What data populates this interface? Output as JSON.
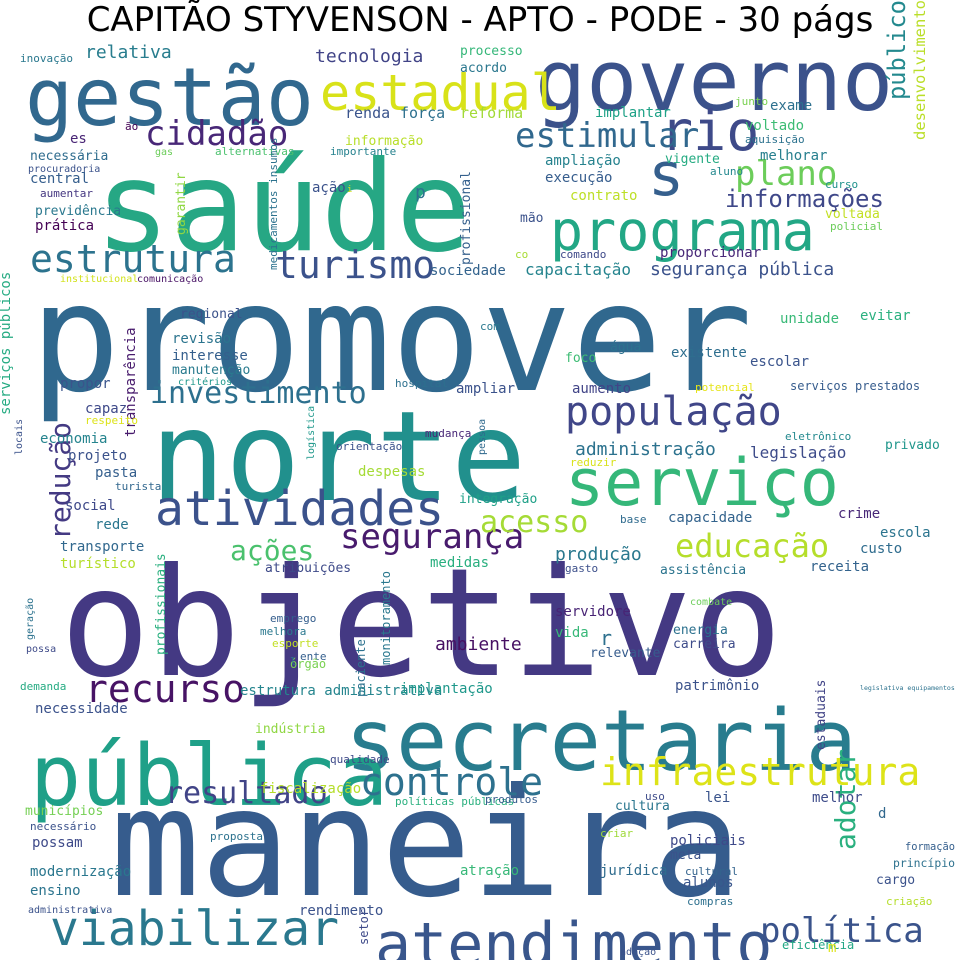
{
  "title": "CAPITÃO STYVENSON - APTO - PODE - 30 págs",
  "words": [
    {
      "text": "promover",
      "color": "#30688e"
    },
    {
      "text": "saúde",
      "color": "#26a784"
    },
    {
      "text": "objetivo",
      "color": "#443983"
    },
    {
      "text": "maneira",
      "color": "#365c8d"
    },
    {
      "text": "norte",
      "color": "#21908d"
    },
    {
      "text": "governo",
      "color": "#3b528b"
    },
    {
      "text": "gestão",
      "color": "#31688e"
    },
    {
      "text": "público",
      "color": "#23898e"
    },
    {
      "text": "secretaria",
      "color": "#287c8e"
    },
    {
      "text": "pública",
      "color": "#1fa088"
    },
    {
      "text": "serviço",
      "color": "#35b779"
    },
    {
      "text": "atendimento",
      "color": "#39568c"
    },
    {
      "text": "programa",
      "color": "#22a785"
    },
    {
      "text": "viabilizar",
      "color": "#2a788e"
    },
    {
      "text": "rio",
      "color": "#3e4a89"
    },
    {
      "text": "atividades",
      "color": "#3b528b"
    },
    {
      "text": "população",
      "color": "#404688"
    },
    {
      "text": "estadual",
      "color": "#d8e219"
    },
    {
      "text": "s",
      "color": "#355f8d"
    },
    {
      "text": "infraestrutura",
      "color": "#dde318"
    },
    {
      "text": "controle",
      "color": "#2d718e"
    },
    {
      "text": "estrutura",
      "color": "#2c738e"
    },
    {
      "text": "turismo",
      "color": "#3b528b"
    },
    {
      "text": "cidadão",
      "color": "#482777"
    },
    {
      "text": "estimular",
      "color": "#31688e"
    },
    {
      "text": "plano",
      "color": "#6ccd5a"
    },
    {
      "text": "política",
      "color": "#3a538b"
    },
    {
      "text": "recurso",
      "color": "#471365"
    },
    {
      "text": "resultado",
      "color": "#414487"
    },
    {
      "text": "investimento",
      "color": "#2d708e"
    },
    {
      "text": "desenvolvimento",
      "color": "#bade28"
    },
    {
      "text": "educação",
      "color": "#b5de2b"
    },
    {
      "text": "segurança",
      "color": "#481b6d"
    },
    {
      "text": "acesso",
      "color": "#a5db36"
    },
    {
      "text": "ações",
      "color": "#4ac16d"
    },
    {
      "text": "adotar",
      "color": "#2ab07f"
    },
    {
      "text": "redução",
      "color": "#443a83"
    },
    {
      "text": "informações",
      "color": "#3f4889"
    },
    {
      "text": "segurança pública",
      "color": "#3b528b"
    },
    {
      "text": "capacitação",
      "color": "#25848e"
    },
    {
      "text": "sociedade",
      "color": "#33638d"
    },
    {
      "text": "administração",
      "color": "#2c728e"
    },
    {
      "text": "legislação",
      "color": "#3e4c8a"
    },
    {
      "text": "ambiente",
      "color": "#471063"
    },
    {
      "text": "produção",
      "color": "#2a788e"
    },
    {
      "text": "ampliação",
      "color": "#26828e"
    },
    {
      "text": "execução",
      "color": "#365d8d"
    },
    {
      "text": "tecnologia",
      "color": "#414487"
    },
    {
      "text": "relativa",
      "color": "#287d8e"
    },
    {
      "text": "processo",
      "color": "#35b779"
    },
    {
      "text": "acordo",
      "color": "#2a778e"
    },
    {
      "text": "renda",
      "color": "#3a548c"
    },
    {
      "text": "força",
      "color": "#2d708e"
    },
    {
      "text": "reforma",
      "color": "#a2da37"
    },
    {
      "text": "informação",
      "color": "#b8de29"
    },
    {
      "text": "implantar",
      "color": "#1fa287"
    },
    {
      "text": "voltado",
      "color": "#3dbc74"
    },
    {
      "text": "exame",
      "color": "#2d708e"
    },
    {
      "text": "junto",
      "color": "#7ad151"
    },
    {
      "text": "aquisição",
      "color": "#2c728e"
    },
    {
      "text": "melhorar",
      "color": "#277f8e"
    },
    {
      "text": "aluno",
      "color": "#23888e"
    },
    {
      "text": "vigente",
      "color": "#25ab82"
    },
    {
      "text": "curso",
      "color": "#20928c"
    },
    {
      "text": "policial",
      "color": "#6ccd5a"
    },
    {
      "text": "voltada",
      "color": "#c2df23"
    },
    {
      "text": "inovação",
      "color": "#2a788e"
    },
    {
      "text": "es",
      "color": "#482475"
    },
    {
      "text": "ão",
      "color": "#440154"
    },
    {
      "text": "necessária",
      "color": "#2f6c8e"
    },
    {
      "text": "procuradoria",
      "color": "#3b528b"
    },
    {
      "text": "gas",
      "color": "#6ccd5a"
    },
    {
      "text": "alternativas",
      "color": "#4ac16d"
    },
    {
      "text": "importante",
      "color": "#26828e"
    },
    {
      "text": "central",
      "color": "#355e8d"
    },
    {
      "text": "aumentar",
      "color": "#453781"
    },
    {
      "text": "previdência",
      "color": "#2a788e"
    },
    {
      "text": "prática",
      "color": "#440154"
    },
    {
      "text": "institucional",
      "color": "#d2e21b"
    },
    {
      "text": "comunicação",
      "color": "#471164"
    },
    {
      "text": "garantir",
      "color": "#90d743"
    },
    {
      "text": "medicamentos insumos",
      "color": "#2c728e"
    },
    {
      "text": "profissional",
      "color": "#35608d"
    },
    {
      "text": "contrato",
      "color": "#bddf26"
    },
    {
      "text": "mão",
      "color": "#3b528b"
    },
    {
      "text": "comando",
      "color": "#3e4989"
    },
    {
      "text": "co",
      "color": "#a8db34"
    },
    {
      "text": "proporcionar",
      "color": "#482878"
    },
    {
      "text": "regional",
      "color": "#3b528b"
    },
    {
      "text": "revisão",
      "color": "#2b748e"
    },
    {
      "text": "interesse",
      "color": "#355f8d"
    },
    {
      "text": "manutenção",
      "color": "#297b8e"
    },
    {
      "text": "critérios",
      "color": "#1f988b"
    },
    {
      "text": "transparência",
      "color": "#481b6d"
    },
    {
      "text": "serviços públicos",
      "color": "#25ab82"
    },
    {
      "text": "hospital",
      "color": "#2d708e"
    },
    {
      "text": "com",
      "color": "#2a788e"
    },
    {
      "text": "foco",
      "color": "#3dbc74"
    },
    {
      "text": "água",
      "color": "#2c728e"
    },
    {
      "text": "existente",
      "color": "#2e6e8e"
    },
    {
      "text": "escolar",
      "color": "#3a548c"
    },
    {
      "text": "unidade",
      "color": "#38b977"
    },
    {
      "text": "evitar",
      "color": "#2ab07f"
    },
    {
      "text": "potencial",
      "color": "#e5e419"
    },
    {
      "text": "serviços prestados",
      "color": "#365c8d"
    },
    {
      "text": "eletrônico",
      "color": "#23898e"
    },
    {
      "text": "privado",
      "color": "#1f968b"
    },
    {
      "text": "propor",
      "color": "#3a548c"
    },
    {
      "text": "capaz",
      "color": "#3e4989"
    },
    {
      "text": "respeito",
      "color": "#dde318"
    },
    {
      "text": "ampliar",
      "color": "#3b528b"
    },
    {
      "text": "aumento",
      "color": "#414487"
    },
    {
      "text": "economia",
      "color": "#25848e"
    },
    {
      "text": "locais",
      "color": "#3b528b"
    },
    {
      "text": "logística",
      "color": "#1f988b"
    },
    {
      "text": "pessoa",
      "color": "#306a8e"
    },
    {
      "text": "orientação",
      "color": "#3b528b"
    },
    {
      "text": "mudança",
      "color": "#482777"
    },
    {
      "text": "reduzir",
      "color": "#d8e219"
    },
    {
      "text": "projeto",
      "color": "#3b528b"
    },
    {
      "text": "pasta",
      "color": "#355f8d"
    },
    {
      "text": "turista",
      "color": "#31678e"
    },
    {
      "text": "despesas",
      "color": "#a5db36"
    },
    {
      "text": "social",
      "color": "#3e4989"
    },
    {
      "text": "integração",
      "color": "#1fa088"
    },
    {
      "text": "rede",
      "color": "#2a768e"
    },
    {
      "text": "base",
      "color": "#2f6b8e"
    },
    {
      "text": "capacidade",
      "color": "#33638d"
    },
    {
      "text": "crime",
      "color": "#482878"
    },
    {
      "text": "escola",
      "color": "#2b748e"
    },
    {
      "text": "custo",
      "color": "#2f6c8e"
    },
    {
      "text": "receita",
      "color": "#33638d"
    },
    {
      "text": "transporte",
      "color": "#31688e"
    },
    {
      "text": "turístico",
      "color": "#b5de2b"
    },
    {
      "text": "atribuições",
      "color": "#3e4a89"
    },
    {
      "text": "medidas",
      "color": "#29af7f"
    },
    {
      "text": "gasto",
      "color": "#3c4f8a"
    },
    {
      "text": "assistência",
      "color": "#2b748e"
    },
    {
      "text": "servidore",
      "color": "#482475"
    },
    {
      "text": "vida",
      "color": "#37b878"
    },
    {
      "text": "r",
      "color": "#2d708e"
    },
    {
      "text": "energia",
      "color": "#2c718e"
    },
    {
      "text": "carreira",
      "color": "#3e4c8a"
    },
    {
      "text": "relevante",
      "color": "#365c8d"
    },
    {
      "text": "combate",
      "color": "#6ccd5a"
    },
    {
      "text": "geração",
      "color": "#2c728e"
    },
    {
      "text": "possa",
      "color": "#3e4a89"
    },
    {
      "text": "melhora",
      "color": "#2a788e"
    },
    {
      "text": "emprego",
      "color": "#355e8d"
    },
    {
      "text": "esporte",
      "color": "#c2df23"
    },
    {
      "text": "ente",
      "color": "#355f8d"
    },
    {
      "text": "órgão",
      "color": "#7ad151"
    },
    {
      "text": "profissionais",
      "color": "#2ab07f"
    },
    {
      "text": "monitoramento",
      "color": "#2a788e"
    },
    {
      "text": "paciente",
      "color": "#2c718e"
    },
    {
      "text": "demanda",
      "color": "#25ab82"
    },
    {
      "text": "estrutura administrativa",
      "color": "#25858e"
    },
    {
      "text": "implantação",
      "color": "#1f988b"
    },
    {
      "text": "patrimônio",
      "color": "#3b528b"
    },
    {
      "text": "legislativa equipamentos",
      "color": "#2c728e"
    },
    {
      "text": "necessidade",
      "color": "#3b528b"
    },
    {
      "text": "indústria",
      "color": "#90d743"
    },
    {
      "text": "estaduais",
      "color": "#414487"
    },
    {
      "text": "fiscalização",
      "color": "#b5de2b"
    },
    {
      "text": "qualidade",
      "color": "#3e4a89"
    },
    {
      "text": "municípios",
      "color": "#75d054"
    },
    {
      "text": "necessário",
      "color": "#3b528b"
    },
    {
      "text": "políticas públicas",
      "color": "#2ab07f"
    },
    {
      "text": "produtos",
      "color": "#365c8d"
    },
    {
      "text": "uso",
      "color": "#3e4c8a"
    },
    {
      "text": "cultura",
      "color": "#2a768e"
    },
    {
      "text": "lei",
      "color": "#3a548c"
    },
    {
      "text": "melhor",
      "color": "#3e4c8a"
    },
    {
      "text": "d",
      "color": "#31688e"
    },
    {
      "text": "formação",
      "color": "#355f8d"
    },
    {
      "text": "proposta",
      "color": "#2c728e"
    },
    {
      "text": "possam",
      "color": "#3e4a89"
    },
    {
      "text": "criar",
      "color": "#9fda3a"
    },
    {
      "text": "policiais",
      "color": "#3e4989"
    },
    {
      "text": "meta",
      "color": "#3b528b"
    },
    {
      "text": "princípio",
      "color": "#2d718e"
    },
    {
      "text": "modernização",
      "color": "#2a778e"
    },
    {
      "text": "atração",
      "color": "#37b878"
    },
    {
      "text": "cargo",
      "color": "#3b528b"
    },
    {
      "text": "jurídica",
      "color": "#2f6c8e"
    },
    {
      "text": "ensino",
      "color": "#2b748e"
    },
    {
      "text": "alunos",
      "color": "#39568c"
    },
    {
      "text": "cultural",
      "color": "#33638d"
    },
    {
      "text": "compras",
      "color": "#2d708e"
    },
    {
      "text": "criação",
      "color": "#b5de2b"
    },
    {
      "text": "setor",
      "color": "#3e4a89"
    },
    {
      "text": "rendimento",
      "color": "#3b528b"
    },
    {
      "text": "administrativa",
      "color": "#3b528b"
    },
    {
      "text": "adoção",
      "color": "#3b528b"
    },
    {
      "text": "eficiência",
      "color": "#22a785"
    },
    {
      "text": "m",
      "color": "#dde318"
    },
    {
      "text": "p",
      "color": "#2c728e"
    },
    {
      "text": "ação",
      "color": "#3b528b"
    },
    {
      "text": "i",
      "color": "#d8e219"
    },
    {
      "text": "l",
      "color": "#2a788e"
    }
  ]
}
